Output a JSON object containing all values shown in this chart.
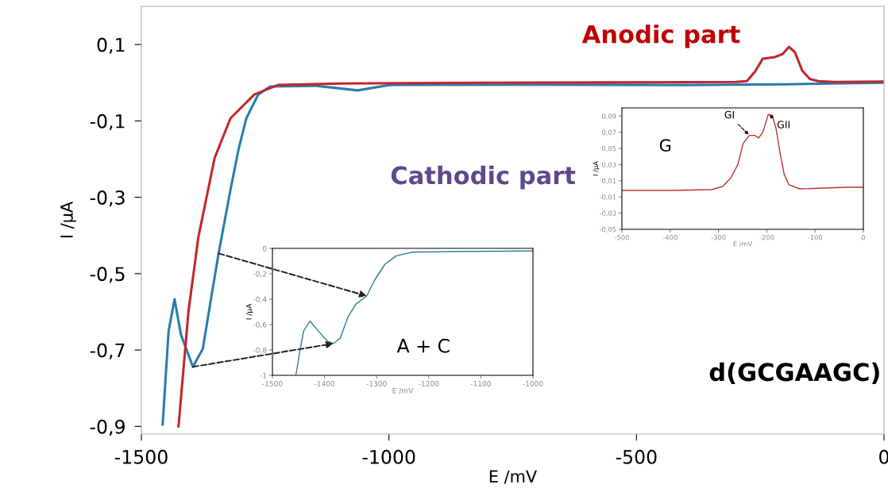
{
  "chart_data": [
    {
      "type": "line",
      "xlabel": "E /mV",
      "ylabel": "I /µA",
      "xlim": [
        -1500,
        0
      ],
      "ylim": [
        -0.92,
        0.2
      ],
      "xticks": [
        -1500,
        -1000,
        -500,
        0
      ],
      "yticks": [
        {
          "value": 0.1,
          "label": "0,1"
        },
        {
          "value": -0.1,
          "label": "-0,1"
        },
        {
          "value": -0.3,
          "label": "-0,3"
        },
        {
          "value": -0.5,
          "label": "-0,5"
        },
        {
          "value": -0.7,
          "label": "-0,7"
        },
        {
          "value": -0.9,
          "label": "-0,9"
        }
      ],
      "annotations": [
        "Anodic part",
        "Cathodic part",
        "d(GCGAAGC)"
      ],
      "series": [
        {
          "color": "#2b7bb0",
          "x": [
            -1457,
            -1445,
            -1433,
            -1420,
            -1396,
            -1376,
            -1360,
            -1344,
            -1320,
            -1304,
            -1288,
            -1264,
            -1240,
            -1150,
            -1063,
            -1000,
            -700,
            -400,
            -200,
            0
          ],
          "values": [
            -0.895,
            -0.65,
            -0.567,
            -0.66,
            -0.744,
            -0.697,
            -0.571,
            -0.447,
            -0.28,
            -0.176,
            -0.093,
            -0.031,
            -0.01,
            -0.008,
            -0.02,
            -0.006,
            -0.005,
            -0.006,
            -0.004,
            0.0
          ]
        },
        {
          "color": "#c0282d",
          "x": [
            -1425,
            -1405,
            -1385,
            -1352,
            -1320,
            -1272,
            -1224,
            -1100,
            -800,
            -500,
            -300,
            -277,
            -260,
            -245,
            -221,
            -205,
            -192,
            -180,
            -165,
            -150,
            -133,
            -100,
            0
          ],
          "values": [
            -0.9,
            -0.6,
            -0.405,
            -0.197,
            -0.093,
            -0.031,
            -0.006,
            -0.002,
            0.0,
            0.001,
            0.002,
            0.004,
            0.03,
            0.063,
            0.067,
            0.075,
            0.094,
            0.08,
            0.031,
            0.01,
            0.004,
            0.002,
            0.003
          ]
        }
      ]
    },
    {
      "type": "line",
      "xlabel": "E /mV",
      "ylabel": "I /µA",
      "xlim": [
        -1500,
        -1000
      ],
      "ylim": [
        -1,
        0
      ],
      "xticks": [
        -1500,
        -1400,
        -1300,
        -1200,
        -1100,
        -1000
      ],
      "yticks": [
        0,
        {
          "value": -0.2,
          "label": "-0,2"
        },
        {
          "value": -0.4,
          "label": "-0,4"
        },
        {
          "value": -0.6,
          "label": "-0,6"
        },
        {
          "value": -0.8,
          "label": "-0,8"
        },
        -1
      ],
      "annotations": [
        "A + C"
      ],
      "series": [
        {
          "color": "#2a7f9a",
          "x": [
            -1455,
            -1447,
            -1440,
            -1428,
            -1410,
            -1395,
            -1383,
            -1370,
            -1355,
            -1340,
            -1319,
            -1304,
            -1284,
            -1263,
            -1233,
            -1150,
            -1000
          ],
          "values": [
            -1.0,
            -0.8,
            -0.65,
            -0.573,
            -0.66,
            -0.73,
            -0.75,
            -0.708,
            -0.54,
            -0.44,
            -0.375,
            -0.25,
            -0.125,
            -0.06,
            -0.03,
            -0.025,
            -0.02
          ]
        }
      ]
    },
    {
      "type": "line",
      "xlabel": "E /mV",
      "ylabel": "I /µA",
      "xlim": [
        -500,
        0
      ],
      "ylim": [
        -0.05,
        0.1
      ],
      "xticks": [
        -500,
        -400,
        -300,
        -200,
        -100,
        0
      ],
      "yticks": [
        {
          "value": 0.09,
          "label": "0,09"
        },
        {
          "value": 0.07,
          "label": "0,07"
        },
        {
          "value": 0.05,
          "label": "0,05"
        },
        {
          "value": 0.03,
          "label": "0,03"
        },
        {
          "value": 0.01,
          "label": "0,01"
        },
        {
          "value": -0.01,
          "label": "-0,01"
        },
        {
          "value": -0.03,
          "label": "-0,03"
        },
        {
          "value": -0.05,
          "label": "-0,05"
        }
      ],
      "annotations": [
        "G",
        {
          "text": "GI",
          "x": -236,
          "y": 0.066
        },
        {
          "text": "GII",
          "x": -197,
          "y": 0.092
        }
      ],
      "series": [
        {
          "color": "#b8332f",
          "x": [
            -500,
            -400,
            -315,
            -291,
            -274,
            -260,
            -249,
            -236,
            -225,
            -217,
            -208,
            -197,
            -189,
            -181,
            -173,
            -164,
            -154,
            -132,
            -33,
            0
          ],
          "values": [
            -0.002,
            -0.002,
            -0.001,
            0.003,
            0.014,
            0.03,
            0.056,
            0.066,
            0.066,
            0.063,
            0.07,
            0.092,
            0.091,
            0.075,
            0.046,
            0.018,
            0.005,
            0.0,
            0.002,
            0.002
          ]
        }
      ]
    }
  ]
}
